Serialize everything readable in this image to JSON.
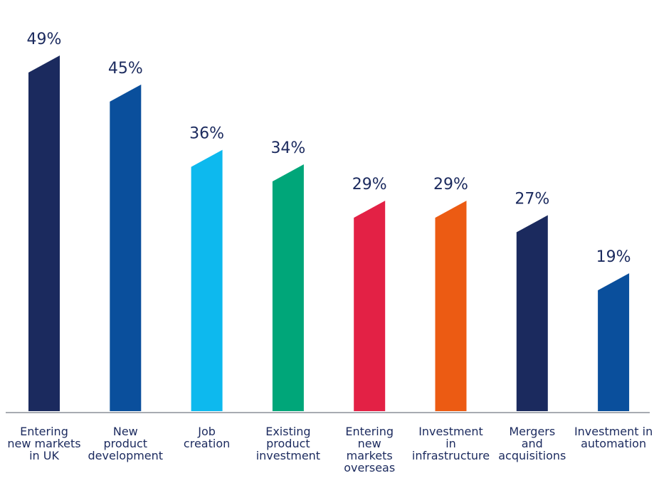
{
  "chart_data": {
    "type": "bar",
    "title": "",
    "xlabel": "",
    "ylabel": "",
    "ylim": [
      0,
      49
    ],
    "grid": false,
    "legend": "none",
    "categories": [
      [
        "Entering",
        "new markets",
        "in UK"
      ],
      [
        "New",
        "product",
        "development"
      ],
      [
        "Job",
        "creation"
      ],
      [
        "Existing",
        "product",
        "investment"
      ],
      [
        "Entering",
        "new",
        "markets",
        "overseas"
      ],
      [
        "Investment",
        "in",
        "infrastructure"
      ],
      [
        "Mergers",
        "and",
        "acquisitions"
      ],
      [
        "Investment in",
        "automation"
      ]
    ],
    "values": [
      49,
      45,
      36,
      34,
      29,
      29,
      27,
      19
    ],
    "value_labels": [
      "49%",
      "45%",
      "36%",
      "34%",
      "29%",
      "29%",
      "27%",
      "19%"
    ],
    "colors": [
      "#1b2a5e",
      "#0a4f9c",
      "#0db9ee",
      "#00a679",
      "#e32145",
      "#ec5b13",
      "#1b2a5e",
      "#0a4f9c"
    ]
  }
}
